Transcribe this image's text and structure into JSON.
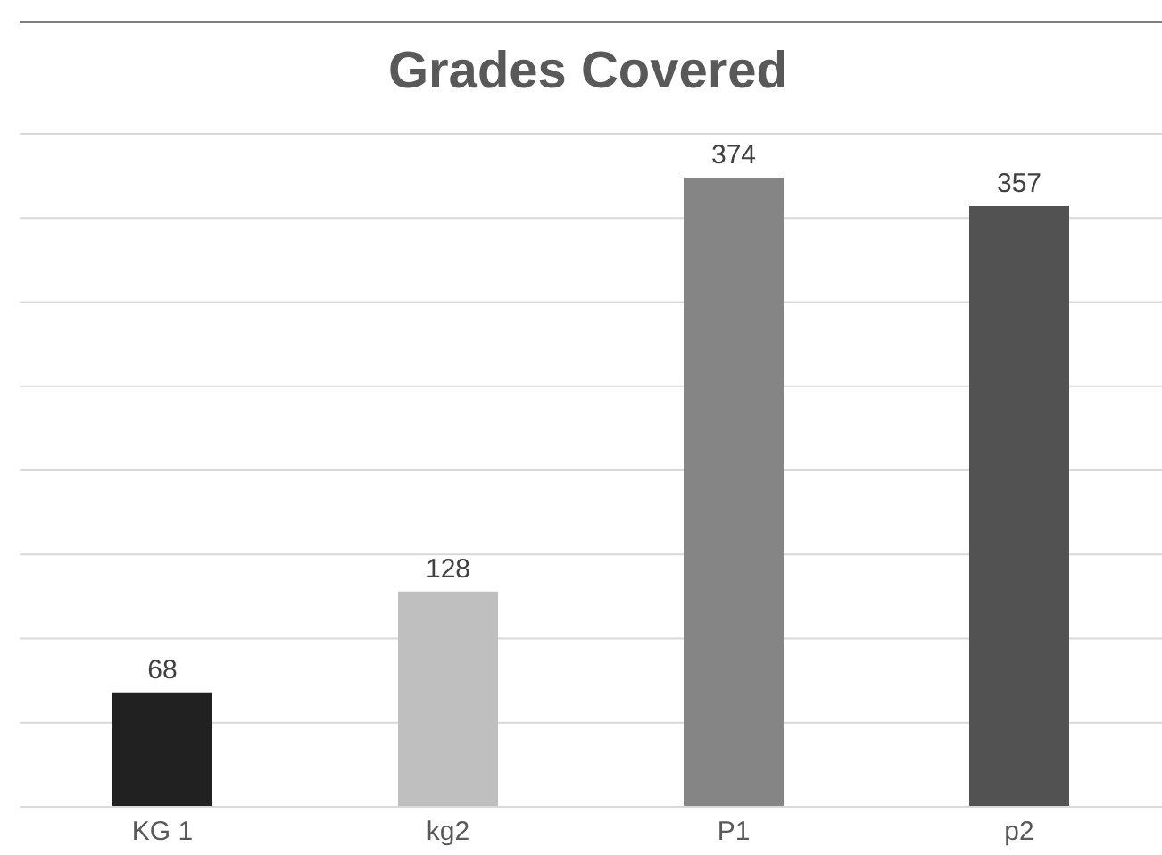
{
  "chart_data": {
    "type": "bar",
    "title": "Grades Covered",
    "categories": [
      "KG 1",
      "kg2",
      "P1",
      "p2"
    ],
    "values": [
      68,
      128,
      374,
      357
    ],
    "colors": [
      "#212121",
      "#bfbfbf",
      "#858585",
      "#525252"
    ],
    "ylim": [
      0,
      400
    ],
    "yticks": [
      {
        "value": 0,
        "label": null
      },
      {
        "value": 50,
        "label": null
      },
      {
        "value": 100,
        "label": null
      },
      {
        "value": 150,
        "label": null
      },
      {
        "value": 200,
        "label": null
      },
      {
        "value": 250,
        "label": null
      },
      {
        "value": 300,
        "label": null
      },
      {
        "value": 350,
        "label": null
      },
      {
        "value": 400,
        "label": null
      }
    ],
    "grid": "y",
    "tick_labels": "x",
    "data_labels": true
  }
}
